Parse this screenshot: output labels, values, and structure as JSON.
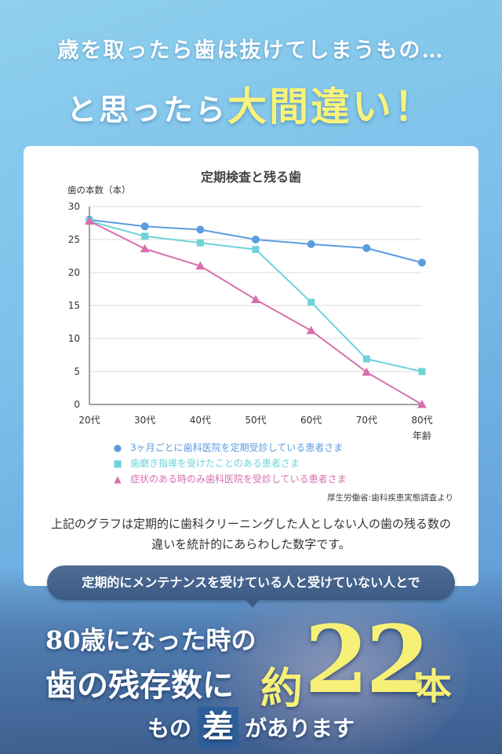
{
  "headline": {
    "line1": "歳を取ったら歯は抜けてしまうもの…",
    "line2_prefix": "と思ったら",
    "line2_highlight": "大間違い！"
  },
  "chart_data": {
    "type": "line",
    "title": "定期検査と残る歯",
    "ylabel": "歯の本数（本）",
    "xlabel": "年齢",
    "categories": [
      "20代",
      "30代",
      "40代",
      "50代",
      "60代",
      "70代",
      "80代"
    ],
    "y_ticks": [
      "30",
      "25",
      "20",
      "15",
      "10",
      "5",
      "0"
    ],
    "ylim": [
      0,
      30
    ],
    "grid": true,
    "series": [
      {
        "name": "3ヶ月ごとに歯科医院を定期受診している患者さま",
        "marker": "circle",
        "color": "#5b9ce0",
        "values": [
          28,
          27,
          26.5,
          25,
          24.3,
          23.7,
          21.5
        ]
      },
      {
        "name": "歯磨き指導を受けたことのある患者さま",
        "marker": "square",
        "color": "#6fd3d8",
        "values": [
          27.8,
          25.5,
          24.5,
          23.5,
          15.5,
          6.9,
          5
        ]
      },
      {
        "name": "症状のある時のみ歯科医院を受診している患者さま",
        "marker": "triangle",
        "color": "#d771ad",
        "values": [
          27.8,
          23.6,
          21,
          15.9,
          11.2,
          4.9,
          0
        ]
      }
    ],
    "source": "厚生労働省:歯科疾患実態調査より"
  },
  "description": "上記のグラフは定期的に歯科クリーニングした人としない人の歯の残る数の違いを統計的にあらわした数字です。",
  "banner": "定期的にメンテナンスを受けている人と受けていない人とで",
  "result": {
    "line1": "80歳になった時の",
    "line2": "歯の残存数に",
    "yaku": "約",
    "number": "22",
    "unit": "本",
    "line3_prefix": "もの",
    "line3_box": "差",
    "line3_suffix": "があります"
  }
}
